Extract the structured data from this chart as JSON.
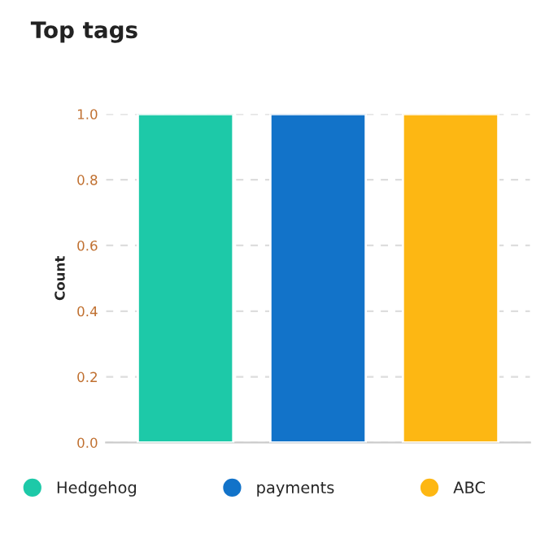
{
  "chart_data": {
    "type": "bar",
    "title": "Top tags",
    "ylabel": "Count",
    "categories": [
      null,
      null,
      null
    ],
    "series": [
      {
        "name": "Hedgehog",
        "color": "#1dc9a8",
        "values": [
          1.0,
          null,
          null
        ]
      },
      {
        "name": "payments",
        "color": "#1273c9",
        "values": [
          null,
          1.0,
          null
        ]
      },
      {
        "name": "ABC",
        "color": "#fdb713",
        "values": [
          null,
          null,
          1.0
        ]
      }
    ],
    "ylim": [
      0,
      1.0
    ],
    "yticks": [
      {
        "value": 0,
        "label": "0.0"
      },
      {
        "value": 0.2,
        "label": "0.2"
      },
      {
        "value": 0.4,
        "label": "0.4"
      },
      {
        "value": 0.6,
        "label": "0.6"
      },
      {
        "value": 0.8,
        "label": "0.8"
      },
      {
        "value": 1.0,
        "label": "1.0"
      }
    ],
    "grid": "y",
    "legend": "bottom"
  }
}
